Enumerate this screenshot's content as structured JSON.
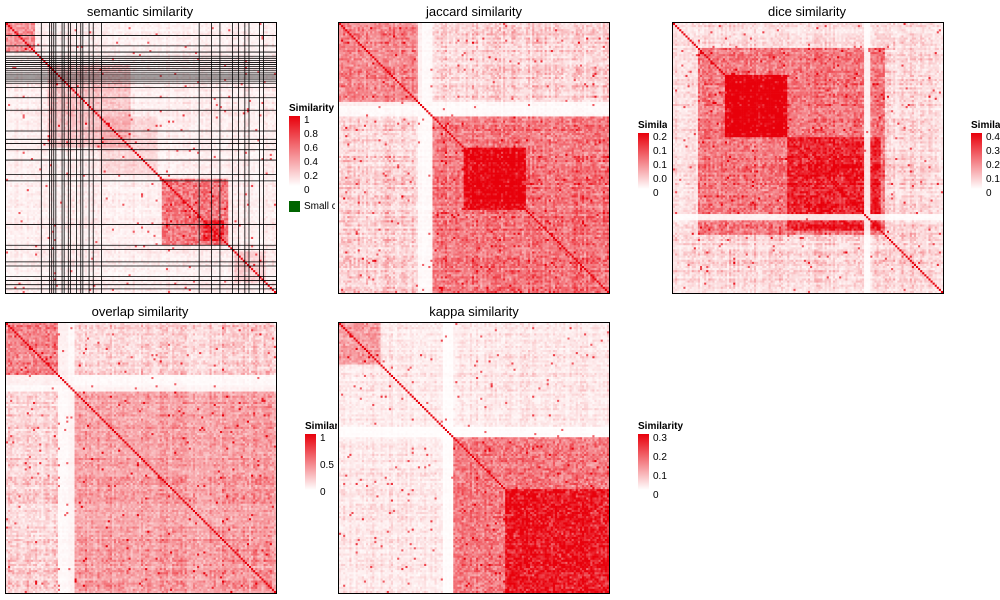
{
  "colors": {
    "low": "#ffffff",
    "high": "#e8000b",
    "small_term": "#006400",
    "border": "#000000"
  },
  "chart_data": [
    {
      "type": "heatmap",
      "title": "semantic similarity",
      "legend": {
        "title": "Similarity",
        "ticks": [
          "1",
          "0.8",
          "0.6",
          "0.4",
          "0.2",
          "0"
        ],
        "max": 1
      },
      "extra_legend": {
        "label": "Small clusters",
        "color": "#006400"
      },
      "n": 130,
      "seed": 11,
      "clusters": [
        {
          "start": 0,
          "size": 14,
          "strength": 0.45
        },
        {
          "start": 20,
          "size": 40,
          "strength": 0.18
        },
        {
          "start": 45,
          "size": 28,
          "strength": 0.12
        },
        {
          "start": 75,
          "size": 32,
          "strength": 0.55
        },
        {
          "start": 95,
          "size": 10,
          "strength": 0.35
        },
        {
          "start": 110,
          "size": 15,
          "strength": 0.15
        }
      ],
      "grid_lines": [
        6,
        11,
        14,
        16,
        17,
        18,
        19,
        20,
        21,
        22,
        23,
        24,
        25,
        26,
        27,
        28,
        29,
        31,
        36,
        42,
        52,
        56,
        58,
        61,
        66,
        73,
        76,
        97,
        107,
        109,
        115,
        117,
        122,
        124,
        126,
        128
      ],
      "vertical_lines": [
        17,
        21,
        22,
        23,
        24,
        27,
        28,
        30,
        31,
        34,
        36,
        37,
        40,
        42,
        46,
        93,
        99,
        103,
        109,
        112,
        115,
        117,
        122,
        124
      ],
      "background": 0.08
    },
    {
      "type": "heatmap",
      "title": "jaccard similarity",
      "legend": {
        "title": "Similarity",
        "ticks": [
          "0.2",
          "0.15",
          "0.1",
          "0.05",
          "0"
        ],
        "max": 0.2
      },
      "n": 130,
      "seed": 23,
      "clusters": [
        {
          "start": 0,
          "size": 40,
          "strength": 0.35
        },
        {
          "start": 45,
          "size": 85,
          "strength": 0.42
        },
        {
          "start": 60,
          "size": 30,
          "strength": 0.6
        }
      ],
      "white_bands": [
        38,
        39,
        40,
        41,
        42,
        43,
        44
      ],
      "background": 0.22
    },
    {
      "type": "heatmap",
      "title": "dice similarity",
      "legend": {
        "title": "Similarity",
        "ticks": [
          "0.4",
          "0.3",
          "0.2",
          "0.1",
          "0"
        ],
        "max": 0.4
      },
      "n": 130,
      "seed": 37,
      "clusters": [
        {
          "start": 12,
          "size": 90,
          "strength": 0.45
        },
        {
          "start": 25,
          "size": 30,
          "strength": 0.7
        },
        {
          "start": 55,
          "size": 45,
          "strength": 0.4
        }
      ],
      "white_bands": [
        92,
        93,
        94
      ],
      "background": 0.18
    },
    {
      "type": "heatmap",
      "title": "overlap similarity",
      "legend": {
        "title": "Similarity",
        "ticks": [
          "1",
          "0.5",
          "0"
        ],
        "max": 1
      },
      "n": 130,
      "seed": 51,
      "clusters": [
        {
          "start": 0,
          "size": 30,
          "strength": 0.35
        },
        {
          "start": 30,
          "size": 100,
          "strength": 0.25
        }
      ],
      "white_bands": [
        25,
        26,
        27,
        28,
        29,
        30,
        31,
        32
      ],
      "background": 0.2
    },
    {
      "type": "heatmap",
      "title": "kappa similarity",
      "legend": {
        "title": "Similarity",
        "ticks": [
          "0.3",
          "0.2",
          "0.1",
          "0"
        ],
        "max": 0.3
      },
      "n": 130,
      "seed": 67,
      "clusters": [
        {
          "start": 0,
          "size": 20,
          "strength": 0.35
        },
        {
          "start": 55,
          "size": 75,
          "strength": 0.5
        },
        {
          "start": 80,
          "size": 50,
          "strength": 0.45
        }
      ],
      "white_bands": [
        50,
        51,
        52,
        53,
        54
      ],
      "background": 0.12
    }
  ]
}
